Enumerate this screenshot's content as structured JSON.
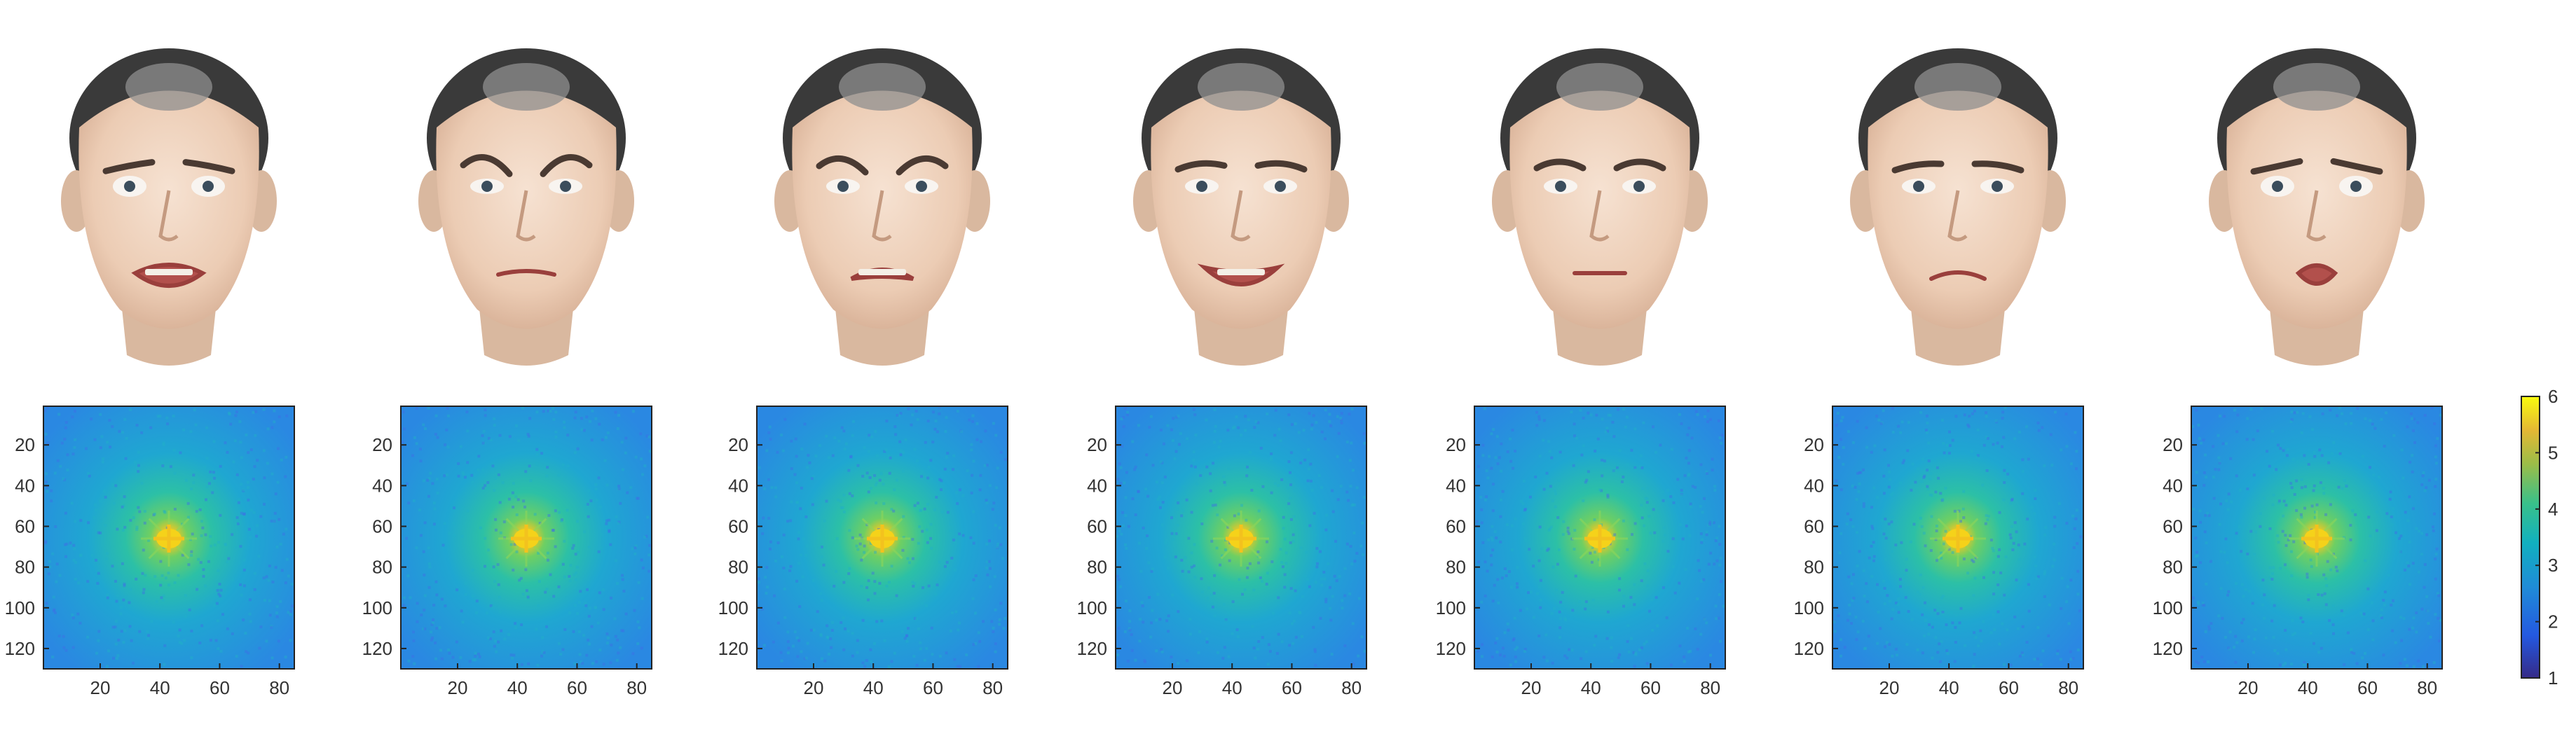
{
  "figure": {
    "panel_count": 7,
    "face_images": [
      "face-photo-fear",
      "face-photo-anger",
      "face-photo-disgust",
      "face-photo-happiness",
      "face-photo-neutral",
      "face-photo-sadness",
      "face-photo-surprise"
    ],
    "mouth_shapes": [
      "open-wide",
      "clenched",
      "grimace",
      "smile-open",
      "neutral",
      "frown",
      "open-round"
    ],
    "colors": {
      "face_skin": "#efd6c3",
      "face_shade": "#d9b89f",
      "hair": "#3a3a3a",
      "hair_gray": "#8f8f8f",
      "spectrum_bg": "#2f8ee0",
      "spectrum_mid": "#22b8a8",
      "spectrum_peak": "#f5d21a",
      "axis": "#222222"
    }
  },
  "chart_data": {
    "type": "heatmap",
    "panels": 7,
    "x": {
      "min": 1,
      "max": 85,
      "ticks": [
        20,
        40,
        60,
        80
      ]
    },
    "y": {
      "min": 1,
      "max": 130,
      "reversed": true,
      "ticks": [
        20,
        40,
        60,
        80,
        100,
        120
      ]
    },
    "center": {
      "x": 43,
      "y": 66
    },
    "colorbar": {
      "min": 1,
      "max": 6,
      "ticks": [
        1,
        2,
        3,
        4,
        5,
        6
      ],
      "colormap": "parula"
    }
  }
}
